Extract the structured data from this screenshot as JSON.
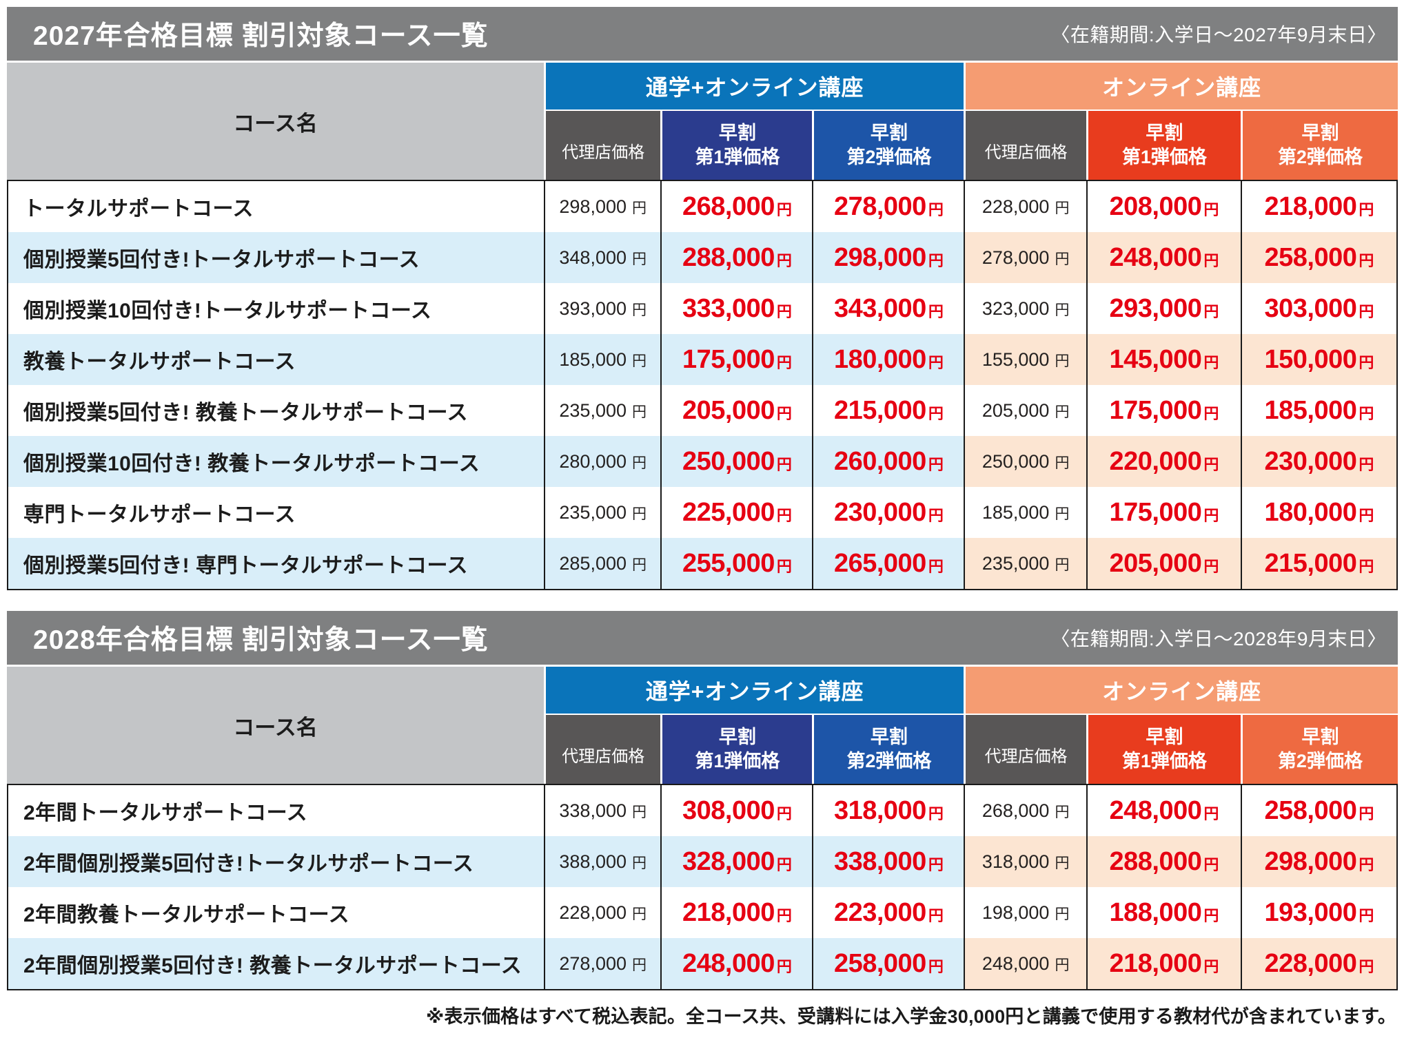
{
  "currency": "円",
  "footnote": "※表示価格はすべて税込表記。全コース共、受講料には入学金30,000円と講義で使用する教材代が含まれています。",
  "colors": {
    "title_gray": "#7f8081",
    "course_head_gray": "#c3c5c7",
    "accent_blue": "#0a74ba",
    "accent_blue_dark": "#2b3c8e",
    "accent_blue_mid": "#1d55a8",
    "accent_orange_light": "#f59c72",
    "accent_red": "#e83c1e",
    "accent_orange": "#ee6a41",
    "agency_gray": "#585656",
    "price_red": "#e60012",
    "row_tint_blue": "#d9eef9",
    "row_tint_peach": "#fce5d2",
    "text_black": "#1c1c1c"
  },
  "tables": [
    {
      "title": "2027年合格目標 割引対象コース一覧",
      "period": "〈在籍期間:入学日〜2027年9月末日〉",
      "course_column_header": "コース名",
      "groups": [
        {
          "label": "通学+オンライン講座",
          "subcolumns": [
            "代理店価格",
            "早割\n第1弾価格",
            "早割\n第2弾価格"
          ]
        },
        {
          "label": "オンライン講座",
          "subcolumns": [
            "代理店価格",
            "早割\n第1弾価格",
            "早割\n第2弾価格"
          ]
        }
      ],
      "rows": [
        {
          "course": "トータルサポートコース",
          "prices": [
            "298,000",
            "268,000",
            "278,000",
            "228,000",
            "208,000",
            "218,000"
          ]
        },
        {
          "course": "個別授業5回付き!トータルサポートコース",
          "prices": [
            "348,000",
            "288,000",
            "298,000",
            "278,000",
            "248,000",
            "258,000"
          ]
        },
        {
          "course": "個別授業10回付き!トータルサポートコース",
          "prices": [
            "393,000",
            "333,000",
            "343,000",
            "323,000",
            "293,000",
            "303,000"
          ]
        },
        {
          "course": "教養トータルサポートコース",
          "prices": [
            "185,000",
            "175,000",
            "180,000",
            "155,000",
            "145,000",
            "150,000"
          ]
        },
        {
          "course": "個別授業5回付き! 教養トータルサポートコース",
          "prices": [
            "235,000",
            "205,000",
            "215,000",
            "205,000",
            "175,000",
            "185,000"
          ]
        },
        {
          "course": "個別授業10回付き! 教養トータルサポートコース",
          "prices": [
            "280,000",
            "250,000",
            "260,000",
            "250,000",
            "220,000",
            "230,000"
          ]
        },
        {
          "course": "専門トータルサポートコース",
          "prices": [
            "235,000",
            "225,000",
            "230,000",
            "185,000",
            "175,000",
            "180,000"
          ]
        },
        {
          "course": "個別授業5回付き! 専門トータルサポートコース",
          "prices": [
            "285,000",
            "255,000",
            "265,000",
            "235,000",
            "205,000",
            "215,000"
          ]
        }
      ]
    },
    {
      "title": "2028年合格目標 割引対象コース一覧",
      "period": "〈在籍期間:入学日〜2028年9月末日〉",
      "course_column_header": "コース名",
      "groups": [
        {
          "label": "通学+オンライン講座",
          "subcolumns": [
            "代理店価格",
            "早割\n第1弾価格",
            "早割\n第2弾価格"
          ]
        },
        {
          "label": "オンライン講座",
          "subcolumns": [
            "代理店価格",
            "早割\n第1弾価格",
            "早割\n第2弾価格"
          ]
        }
      ],
      "rows": [
        {
          "course": "2年間トータルサポートコース",
          "prices": [
            "338,000",
            "308,000",
            "318,000",
            "268,000",
            "248,000",
            "258,000"
          ]
        },
        {
          "course": "2年間個別授業5回付き!トータルサポートコース",
          "prices": [
            "388,000",
            "328,000",
            "338,000",
            "318,000",
            "288,000",
            "298,000"
          ]
        },
        {
          "course": "2年間教養トータルサポートコース",
          "prices": [
            "228,000",
            "218,000",
            "223,000",
            "198,000",
            "188,000",
            "193,000"
          ]
        },
        {
          "course": "2年間個別授業5回付き! 教養トータルサポートコース",
          "prices": [
            "278,000",
            "248,000",
            "258,000",
            "248,000",
            "218,000",
            "228,000"
          ]
        }
      ]
    }
  ]
}
